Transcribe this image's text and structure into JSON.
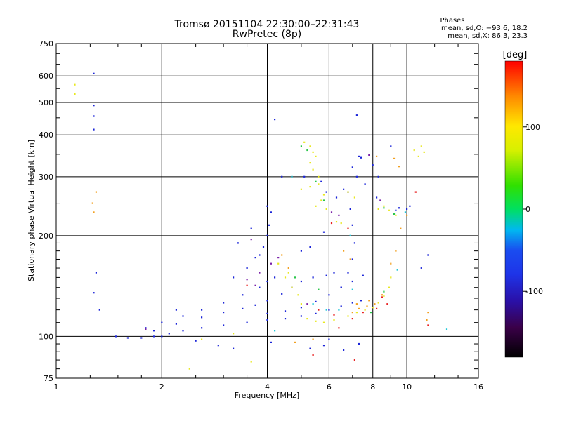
{
  "header": {
    "title_line1": "Tromsø 20151104 22:30:00–22:31:43",
    "title_line2": "RwPretec (8p)"
  },
  "stats": {
    "title": "Phases",
    "line1": "mean, sd,O: −93.6, 18.2",
    "line2": "mean, sd,X:  86.3, 23.3"
  },
  "chart_data": {
    "type": "scatter",
    "xlabel": "Frequency [MHz]",
    "ylabel": "Stationary phase Virtual Height [km]",
    "x_scale": "log2",
    "y_scale": "log",
    "xlim": [
      1,
      16
    ],
    "ylim": [
      75,
      750
    ],
    "x_ticks": [
      1,
      2,
      4,
      6,
      8,
      10,
      16
    ],
    "x_tick_labels": [
      "1",
      "2",
      "4",
      "6",
      "8",
      "10",
      "16"
    ],
    "y_ticks": [
      75,
      100,
      200,
      300,
      400,
      500,
      600,
      750
    ],
    "y_tick_labels": [
      "75",
      "100",
      "200",
      "300",
      "400",
      "500",
      "600",
      "750"
    ],
    "grid": true,
    "colorbar": {
      "label": "[deg]",
      "range": [
        -180,
        180
      ],
      "tick_values": [
        100,
        0,
        -100
      ],
      "tick_labels": [
        "100",
        "0",
        "-100"
      ]
    },
    "series": [
      {
        "color": "#1a24d8",
        "phase": -100,
        "points": [
          [
            1.48,
            100
          ],
          [
            1.6,
            99
          ],
          [
            1.75,
            99
          ],
          [
            1.9,
            100
          ],
          [
            2.0,
            100
          ],
          [
            2.1,
            102
          ],
          [
            2.3,
            104
          ],
          [
            2.6,
            106
          ],
          [
            3.0,
            108
          ],
          [
            3.5,
            110
          ],
          [
            4.0,
            112
          ],
          [
            4.5,
            113
          ],
          [
            5.0,
            115
          ],
          [
            5.5,
            117
          ],
          [
            6.0,
            120
          ],
          [
            6.5,
            123
          ],
          [
            7.0,
            126
          ],
          [
            7.4,
            128
          ],
          [
            1.8,
            106
          ],
          [
            2.0,
            110
          ],
          [
            2.3,
            115
          ],
          [
            2.6,
            120
          ],
          [
            3.0,
            126
          ],
          [
            3.4,
            133
          ],
          [
            3.8,
            140
          ],
          [
            4.0,
            146
          ],
          [
            4.2,
            150
          ],
          [
            1.9,
            104
          ],
          [
            2.2,
            109
          ],
          [
            2.6,
            114
          ],
          [
            3.0,
            118
          ],
          [
            3.4,
            121
          ],
          [
            3.7,
            124
          ],
          [
            4.0,
            128
          ],
          [
            4.4,
            134
          ],
          [
            4.7,
            140
          ],
          [
            5.0,
            146
          ],
          [
            5.4,
            150
          ],
          [
            5.9,
            152
          ],
          [
            6.2,
            155
          ],
          [
            4.0,
            117
          ],
          [
            4.5,
            119
          ],
          [
            5.0,
            122
          ],
          [
            5.5,
            127
          ],
          [
            6.0,
            133
          ],
          [
            6.5,
            140
          ],
          [
            7.0,
            146
          ],
          [
            7.5,
            152
          ],
          [
            3.2,
            150
          ],
          [
            3.5,
            160
          ],
          [
            3.7,
            172
          ],
          [
            3.9,
            185
          ],
          [
            4.0,
            200
          ],
          [
            4.05,
            215
          ],
          [
            4.1,
            235
          ],
          [
            4.0,
            245
          ],
          [
            3.6,
            210
          ],
          [
            3.3,
            190
          ],
          [
            3.8,
            175
          ],
          [
            6.5,
            140
          ],
          [
            6.8,
            155
          ],
          [
            7.0,
            170
          ],
          [
            7.1,
            190
          ],
          [
            7.0,
            215
          ],
          [
            6.9,
            240
          ],
          [
            6.8,
            270
          ],
          [
            7.2,
            300
          ],
          [
            7.0,
            320
          ],
          [
            7.3,
            345
          ],
          [
            7.4,
            342
          ],
          [
            8.0,
            325
          ],
          [
            9.0,
            370
          ],
          [
            10.0,
            240
          ],
          [
            10.2,
            245
          ],
          [
            9.3,
            238
          ],
          [
            9.5,
            242
          ],
          [
            5.8,
            205
          ],
          [
            5.3,
            185
          ],
          [
            5.1,
            300
          ],
          [
            5.0,
            180
          ],
          [
            1.28,
            610
          ],
          [
            1.28,
            490
          ],
          [
            1.28,
            455
          ],
          [
            1.28,
            415
          ],
          [
            4.2,
            445
          ],
          [
            7.2,
            458
          ],
          [
            1.3,
            155
          ],
          [
            1.28,
            135
          ],
          [
            1.33,
            120
          ],
          [
            2.2,
            120
          ],
          [
            2.5,
            97
          ],
          [
            2.9,
            94
          ],
          [
            3.2,
            92
          ],
          [
            4.1,
            96
          ],
          [
            5.3,
            92
          ],
          [
            5.8,
            94
          ],
          [
            6.0,
            98
          ],
          [
            6.6,
            91
          ],
          [
            7.3,
            95
          ],
          [
            4.4,
            300
          ],
          [
            5.7,
            290
          ],
          [
            5.9,
            270
          ],
          [
            8.2,
            260
          ],
          [
            8.3,
            300
          ],
          [
            6.3,
            260
          ],
          [
            6.6,
            275
          ],
          [
            7.6,
            285
          ],
          [
            11.0,
            160
          ],
          [
            11.5,
            175
          ]
        ]
      },
      {
        "color": "#e8e820",
        "phase": 100,
        "points": [
          [
            4.3,
            165
          ],
          [
            4.5,
            150
          ],
          [
            4.7,
            140
          ],
          [
            4.9,
            133
          ],
          [
            5.0,
            125
          ],
          [
            4.6,
            155
          ],
          [
            5.2,
            113
          ],
          [
            5.5,
            111
          ],
          [
            5.8,
            110
          ],
          [
            6.2,
            112
          ],
          [
            6.8,
            115
          ],
          [
            7.2,
            118
          ],
          [
            7.6,
            120
          ],
          [
            8.0,
            122
          ],
          [
            8.3,
            126
          ],
          [
            8.6,
            132
          ],
          [
            8.9,
            140
          ],
          [
            9.0,
            150
          ],
          [
            5.1,
            380
          ],
          [
            5.3,
            370
          ],
          [
            5.4,
            355
          ],
          [
            5.5,
            345
          ],
          [
            5.3,
            330
          ],
          [
            5.4,
            315
          ],
          [
            5.6,
            300
          ],
          [
            5.6,
            285
          ],
          [
            5.3,
            280
          ],
          [
            5.0,
            275
          ],
          [
            5.8,
            265
          ],
          [
            5.7,
            255
          ],
          [
            5.5,
            245
          ],
          [
            5.9,
            240
          ],
          [
            8.3,
            240
          ],
          [
            8.6,
            245
          ],
          [
            8.9,
            238
          ],
          [
            10.5,
            360
          ],
          [
            11.0,
            370
          ],
          [
            11.2,
            355
          ],
          [
            10.8,
            345
          ],
          [
            6.3,
            220
          ],
          [
            6.5,
            218
          ],
          [
            6.8,
            270
          ],
          [
            7.1,
            260
          ],
          [
            9.3,
            230
          ],
          [
            3.2,
            102
          ],
          [
            2.6,
            98
          ],
          [
            3.6,
            84
          ],
          [
            2.4,
            80
          ],
          [
            1.13,
            565
          ],
          [
            1.13,
            530
          ]
        ]
      },
      {
        "color": "#f2a020",
        "phase": 150,
        "points": [
          [
            7.0,
            118
          ],
          [
            7.3,
            121
          ],
          [
            7.7,
            123
          ],
          [
            8.1,
            125
          ],
          [
            8.5,
            133
          ],
          [
            9.6,
            210
          ],
          [
            9.3,
            180
          ],
          [
            9.0,
            165
          ],
          [
            6.6,
            180
          ],
          [
            6.9,
            170
          ],
          [
            4.6,
            160
          ],
          [
            4.4,
            175
          ],
          [
            10.0,
            230
          ],
          [
            11.5,
            118
          ],
          [
            11.4,
            112
          ],
          [
            9.2,
            340
          ],
          [
            8.2,
            345
          ],
          [
            9.5,
            322
          ],
          [
            1.3,
            270
          ],
          [
            1.27,
            250
          ],
          [
            1.28,
            235
          ],
          [
            4.8,
            96
          ],
          [
            5.4,
            98
          ],
          [
            7.2,
            125
          ],
          [
            7.8,
            128
          ]
        ]
      },
      {
        "color": "#e82020",
        "phase": 175,
        "points": [
          [
            5.6,
            120
          ],
          [
            6.2,
            116
          ],
          [
            6.4,
            106
          ],
          [
            7.0,
            113
          ],
          [
            7.5,
            118
          ],
          [
            8.2,
            121
          ],
          [
            8.8,
            125
          ],
          [
            8.5,
            131
          ],
          [
            3.5,
            142
          ],
          [
            5.4,
            88
          ],
          [
            7.1,
            85
          ],
          [
            10.6,
            270
          ],
          [
            11.5,
            108
          ],
          [
            6.1,
            218
          ],
          [
            6.8,
            210
          ]
        ]
      },
      {
        "color": "#2ac64a",
        "phase": 30,
        "points": [
          [
            5.0,
            370
          ],
          [
            5.2,
            360
          ],
          [
            5.5,
            290
          ],
          [
            5.8,
            255
          ],
          [
            8.6,
            242
          ],
          [
            9.2,
            232
          ],
          [
            4.8,
            150
          ],
          [
            5.6,
            138
          ],
          [
            7.9,
            118
          ],
          [
            8.6,
            136
          ]
        ]
      },
      {
        "color": "#22c8d8",
        "phase": -40,
        "points": [
          [
            5.4,
            125
          ],
          [
            5.9,
            120
          ],
          [
            4.2,
            104
          ],
          [
            7.0,
            138
          ],
          [
            6.9,
            200
          ],
          [
            4.7,
            300
          ],
          [
            9.9,
            235
          ],
          [
            13.0,
            105
          ],
          [
            6.4,
            120
          ],
          [
            9.4,
            158
          ]
        ]
      },
      {
        "color": "#7a20a8",
        "phase": -150,
        "points": [
          [
            3.5,
            148
          ],
          [
            3.8,
            155
          ],
          [
            4.1,
            165
          ],
          [
            4.3,
            172
          ],
          [
            3.7,
            142
          ],
          [
            3.6,
            195
          ],
          [
            6.1,
            235
          ],
          [
            6.4,
            230
          ],
          [
            5.2,
            125
          ],
          [
            8.4,
            255
          ],
          [
            1.8,
            105
          ],
          [
            7.8,
            348
          ]
        ]
      }
    ]
  }
}
